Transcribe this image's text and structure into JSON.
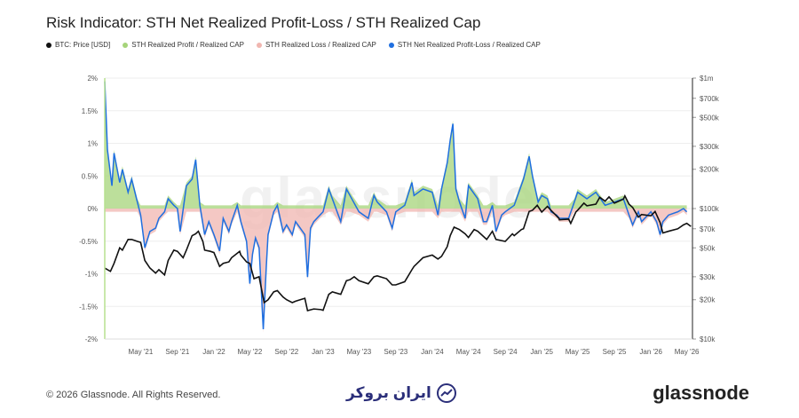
{
  "header": {
    "title": "Risk Indicator: STH Net Realized Profit-Loss / STH Realized Cap"
  },
  "legend": [
    {
      "label": "BTC: Price [USD]",
      "color": "#111111"
    },
    {
      "label": "STH Realized Profit / Realized CAP",
      "color": "#a6d47a"
    },
    {
      "label": "STH Realized Loss / Realized CAP",
      "color": "#f0b6b0"
    },
    {
      "label": "STH Net Realized Profit-Loss / Realized CAP",
      "color": "#1f6fe0"
    }
  ],
  "watermark": "glassnode",
  "footer": {
    "copyright": "© 2026 Glassnode. All Rights Reserved.",
    "brand": "glassnode",
    "partner": "ایران بروکر"
  },
  "chart_data": {
    "type": "line",
    "x_ticks": [
      "May '21",
      "Sep '21",
      "Jan '22",
      "May '22",
      "Sep '22",
      "Jan '23",
      "May '23",
      "Sep '23",
      "Jan '24",
      "May '24",
      "Sep '24",
      "Jan '25",
      "May '25",
      "Sep '25",
      "Jan '26",
      "May '26"
    ],
    "x_range": [
      "2021-01",
      "2026-05"
    ],
    "y_left": {
      "ticks": [
        "2%",
        "1.5%",
        "1%",
        "0.5%",
        "0%",
        "-0.5%",
        "-1%",
        "-1.5%",
        "-2%"
      ],
      "range": [
        -2,
        2
      ]
    },
    "y_right": {
      "scale": "log",
      "ticks": [
        "$1m",
        "$700k",
        "$500k",
        "$300k",
        "$200k",
        "$100k",
        "$70k",
        "$50k",
        "$30k",
        "$20k",
        "$10k"
      ],
      "tick_values": [
        1000000,
        700000,
        500000,
        300000,
        200000,
        100000,
        70000,
        50000,
        30000,
        20000,
        10000
      ],
      "range": [
        10000,
        1000000
      ]
    },
    "series": [
      {
        "name": "STH Net Realized Profit-Loss / Realized CAP",
        "color": "#1f6fe0",
        "points": [
          [
            "2021-01",
            1.95
          ],
          [
            "2021-01-10",
            0.9
          ],
          [
            "2021-01-25",
            0.35
          ],
          [
            "2021-02",
            0.85
          ],
          [
            "2021-02-20",
            0.4
          ],
          [
            "2021-03",
            0.6
          ],
          [
            "2021-03-20",
            0.25
          ],
          [
            "2021-04",
            0.45
          ],
          [
            "2021-04-20",
            0.1
          ],
          [
            "2021-05",
            -0.1
          ],
          [
            "2021-05-15",
            -0.6
          ],
          [
            "2021-06",
            -0.35
          ],
          [
            "2021-06-20",
            -0.3
          ],
          [
            "2021-07",
            -0.15
          ],
          [
            "2021-07-20",
            -0.05
          ],
          [
            "2021-08",
            0.15
          ],
          [
            "2021-08-20",
            0.05
          ],
          [
            "2021-09",
            0.0
          ],
          [
            "2021-09-10",
            -0.35
          ],
          [
            "2021-10",
            0.35
          ],
          [
            "2021-10-20",
            0.45
          ],
          [
            "2021-11",
            0.75
          ],
          [
            "2021-11-15",
            0.05
          ],
          [
            "2021-12",
            -0.4
          ],
          [
            "2021-12-15",
            -0.2
          ],
          [
            "2022-01",
            -0.4
          ],
          [
            "2022-01-20",
            -0.65
          ],
          [
            "2022-02",
            -0.15
          ],
          [
            "2022-02-20",
            -0.35
          ],
          [
            "2022-03",
            -0.2
          ],
          [
            "2022-03-20",
            0.05
          ],
          [
            "2022-04",
            -0.2
          ],
          [
            "2022-04-20",
            -0.5
          ],
          [
            "2022-05",
            -1.15
          ],
          [
            "2022-05-10",
            -0.7
          ],
          [
            "2022-05-20",
            -0.45
          ],
          [
            "2022-06",
            -0.6
          ],
          [
            "2022-06-15",
            -1.85
          ],
          [
            "2022-06-25",
            -0.9
          ],
          [
            "2022-07",
            -0.4
          ],
          [
            "2022-07-20",
            -0.05
          ],
          [
            "2022-08",
            0.05
          ],
          [
            "2022-08-20",
            -0.35
          ],
          [
            "2022-09",
            -0.25
          ],
          [
            "2022-09-20",
            -0.4
          ],
          [
            "2022-10",
            -0.2
          ],
          [
            "2022-11",
            -0.4
          ],
          [
            "2022-11-10",
            -1.05
          ],
          [
            "2022-11-20",
            -0.3
          ],
          [
            "2022-12",
            -0.2
          ],
          [
            "2023-01",
            -0.05
          ],
          [
            "2023-01-20",
            0.3
          ],
          [
            "2023-02",
            0.15
          ],
          [
            "2023-03",
            -0.2
          ],
          [
            "2023-03-20",
            0.3
          ],
          [
            "2023-04",
            0.2
          ],
          [
            "2023-05",
            -0.05
          ],
          [
            "2023-06",
            -0.15
          ],
          [
            "2023-06-20",
            0.2
          ],
          [
            "2023-07",
            0.1
          ],
          [
            "2023-08",
            -0.05
          ],
          [
            "2023-08-20",
            -0.3
          ],
          [
            "2023-09",
            -0.05
          ],
          [
            "2023-10",
            0.05
          ],
          [
            "2023-10-25",
            0.4
          ],
          [
            "2023-11",
            0.2
          ],
          [
            "2023-12",
            0.3
          ],
          [
            "2024-01",
            0.25
          ],
          [
            "2024-01-20",
            -0.1
          ],
          [
            "2024-02",
            0.3
          ],
          [
            "2024-02-20",
            0.7
          ],
          [
            "2024-03",
            1.05
          ],
          [
            "2024-03-10",
            1.3
          ],
          [
            "2024-03-20",
            0.3
          ],
          [
            "2024-04",
            0.1
          ],
          [
            "2024-04-20",
            -0.15
          ],
          [
            "2024-05",
            0.35
          ],
          [
            "2024-06",
            0.15
          ],
          [
            "2024-06-20",
            -0.2
          ],
          [
            "2024-07",
            -0.2
          ],
          [
            "2024-07-20",
            0.05
          ],
          [
            "2024-08",
            -0.35
          ],
          [
            "2024-08-20",
            -0.1
          ],
          [
            "2024-09",
            -0.05
          ],
          [
            "2024-10",
            0.05
          ],
          [
            "2024-11",
            0.45
          ],
          [
            "2024-11-20",
            0.8
          ],
          [
            "2024-12",
            0.5
          ],
          [
            "2024-12-20",
            0.1
          ],
          [
            "2025-01",
            0.2
          ],
          [
            "2025-01-20",
            0.15
          ],
          [
            "2025-02",
            -0.05
          ],
          [
            "2025-02-20",
            -0.1
          ],
          [
            "2025-03",
            -0.15
          ],
          [
            "2025-04",
            -0.15
          ],
          [
            "2025-04-20",
            0.1
          ],
          [
            "2025-05",
            0.25
          ],
          [
            "2025-06",
            0.15
          ],
          [
            "2025-07",
            0.25
          ],
          [
            "2025-08",
            0.05
          ],
          [
            "2025-09",
            0.1
          ],
          [
            "2025-10",
            0.15
          ],
          [
            "2025-10-20",
            -0.1
          ],
          [
            "2025-11",
            -0.25
          ],
          [
            "2025-11-20",
            -0.05
          ],
          [
            "2025-12",
            -0.2
          ],
          [
            "2026-01",
            -0.05
          ],
          [
            "2026-01-20",
            -0.2
          ],
          [
            "2026-02",
            -0.4
          ],
          [
            "2026-02-10",
            -0.2
          ],
          [
            "2026-03",
            -0.1
          ],
          [
            "2026-04",
            -0.05
          ],
          [
            "2026-04-20",
            0.0
          ],
          [
            "2026-05",
            -0.05
          ]
        ]
      },
      {
        "name": "BTC: Price [USD]",
        "color": "#111111",
        "points": [
          [
            "2021-01",
            35000
          ],
          [
            "2021-01-20",
            33000
          ],
          [
            "2021-02",
            38000
          ],
          [
            "2021-02-20",
            50000
          ],
          [
            "2021-03",
            48000
          ],
          [
            "2021-03-20",
            58000
          ],
          [
            "2021-04",
            58000
          ],
          [
            "2021-04-20",
            56000
          ],
          [
            "2021-05",
            55000
          ],
          [
            "2021-05-15",
            40000
          ],
          [
            "2021-06",
            35000
          ],
          [
            "2021-06-20",
            32000
          ],
          [
            "2021-07",
            34000
          ],
          [
            "2021-07-20",
            31000
          ],
          [
            "2021-08",
            40000
          ],
          [
            "2021-08-20",
            48000
          ],
          [
            "2021-09",
            47000
          ],
          [
            "2021-09-20",
            42000
          ],
          [
            "2021-10",
            48000
          ],
          [
            "2021-10-20",
            62000
          ],
          [
            "2021-11",
            64000
          ],
          [
            "2021-11-10",
            67000
          ],
          [
            "2021-11-25",
            56000
          ],
          [
            "2021-12",
            48000
          ],
          [
            "2021-12-20",
            47000
          ],
          [
            "2022-01",
            46000
          ],
          [
            "2022-01-20",
            36000
          ],
          [
            "2022-02",
            38000
          ],
          [
            "2022-02-20",
            39000
          ],
          [
            "2022-03",
            42000
          ],
          [
            "2022-03-28",
            47000
          ],
          [
            "2022-04",
            44000
          ],
          [
            "2022-04-20",
            39000
          ],
          [
            "2022-05",
            38000
          ],
          [
            "2022-05-15",
            29000
          ],
          [
            "2022-06",
            30000
          ],
          [
            "2022-06-18",
            19000
          ],
          [
            "2022-07",
            20000
          ],
          [
            "2022-07-20",
            23000
          ],
          [
            "2022-08",
            23500
          ],
          [
            "2022-08-20",
            21000
          ],
          [
            "2022-09",
            20000
          ],
          [
            "2022-09-20",
            19000
          ],
          [
            "2022-10",
            19500
          ],
          [
            "2022-11",
            20500
          ],
          [
            "2022-11-10",
            16500
          ],
          [
            "2022-12",
            17000
          ],
          [
            "2022-12-25",
            16800
          ],
          [
            "2023-01",
            16600
          ],
          [
            "2023-01-20",
            22000
          ],
          [
            "2023-02",
            23000
          ],
          [
            "2023-03",
            22000
          ],
          [
            "2023-03-20",
            28000
          ],
          [
            "2023-04",
            28500
          ],
          [
            "2023-04-15",
            30000
          ],
          [
            "2023-05",
            28000
          ],
          [
            "2023-06",
            26500
          ],
          [
            "2023-06-20",
            30000
          ],
          [
            "2023-07",
            30500
          ],
          [
            "2023-08",
            29000
          ],
          [
            "2023-08-20",
            26000
          ],
          [
            "2023-09",
            26000
          ],
          [
            "2023-10",
            27500
          ],
          [
            "2023-10-25",
            34000
          ],
          [
            "2023-11",
            36000
          ],
          [
            "2023-12",
            42000
          ],
          [
            "2024-01",
            44000
          ],
          [
            "2024-01-20",
            41000
          ],
          [
            "2024-02",
            43000
          ],
          [
            "2024-02-20",
            51000
          ],
          [
            "2024-03",
            62000
          ],
          [
            "2024-03-14",
            72000
          ],
          [
            "2024-04",
            69000
          ],
          [
            "2024-04-20",
            64000
          ],
          [
            "2024-05",
            60000
          ],
          [
            "2024-05-20",
            69000
          ],
          [
            "2024-06",
            67000
          ],
          [
            "2024-07",
            58000
          ],
          [
            "2024-07-20",
            67000
          ],
          [
            "2024-08",
            58000
          ],
          [
            "2024-09",
            56000
          ],
          [
            "2024-09-25",
            64000
          ],
          [
            "2024-10",
            62000
          ],
          [
            "2024-10-25",
            69000
          ],
          [
            "2024-11",
            70000
          ],
          [
            "2024-11-20",
            95000
          ],
          [
            "2024-12",
            97000
          ],
          [
            "2024-12-17",
            106000
          ],
          [
            "2025-01",
            94000
          ],
          [
            "2025-01-20",
            104000
          ],
          [
            "2025-02",
            97000
          ],
          [
            "2025-02-28",
            84000
          ],
          [
            "2025-03",
            82000
          ],
          [
            "2025-04",
            83000
          ],
          [
            "2025-04-08",
            77000
          ],
          [
            "2025-04-25",
            94000
          ],
          [
            "2025-05",
            97000
          ],
          [
            "2025-05-22",
            110000
          ],
          [
            "2025-06",
            105000
          ],
          [
            "2025-07",
            108000
          ],
          [
            "2025-07-14",
            122000
          ],
          [
            "2025-08",
            114000
          ],
          [
            "2025-08-14",
            123000
          ],
          [
            "2025-09",
            110000
          ],
          [
            "2025-10",
            118000
          ],
          [
            "2025-10-06",
            125000
          ],
          [
            "2025-10-20",
            108000
          ],
          [
            "2025-11",
            102000
          ],
          [
            "2025-11-20",
            86000
          ],
          [
            "2025-12",
            90000
          ],
          [
            "2026-01",
            88000
          ],
          [
            "2026-01-15",
            95000
          ],
          [
            "2026-02",
            78000
          ],
          [
            "2026-02-10",
            65000
          ],
          [
            "2026-03",
            67000
          ],
          [
            "2026-04",
            70000
          ],
          [
            "2026-04-20",
            75000
          ],
          [
            "2026-05",
            77000
          ],
          [
            "2026-05-15",
            73000
          ]
        ]
      }
    ],
    "area_series": [
      {
        "name": "STH Realized Profit / Realized CAP",
        "color": "#a6d47a",
        "note_source": "profit area approximated as max(net,0)+small band"
      },
      {
        "name": "STH Realized Loss / Realized CAP",
        "color": "#f0b6b0"
      }
    ]
  }
}
